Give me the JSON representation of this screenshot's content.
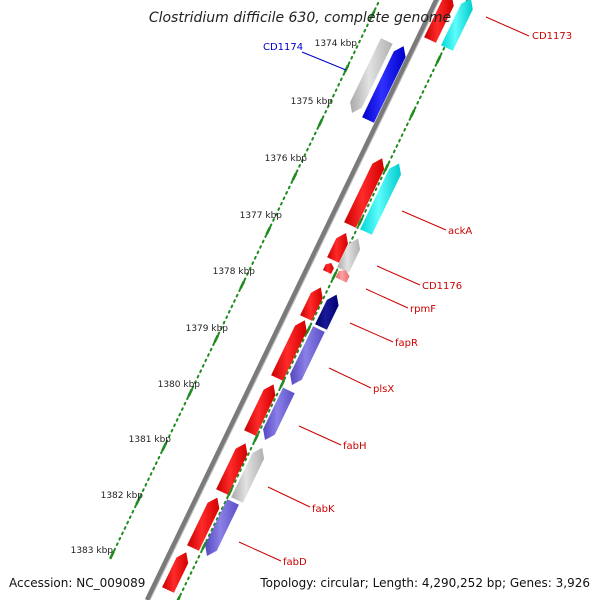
{
  "title": "Clostridium difficile 630, complete genome",
  "accession_text": "Accession: NC_009089",
  "topology_text": "Topology: circular; Length: 4,290,252 bp; Genes: 3,926",
  "colors": {
    "backbone": "#7a7a7a",
    "tick": "#1e8c1e",
    "label_red": "#cc0000",
    "label_blue": "#0000cc",
    "red": "#ff0000",
    "cyan": "#00ffff",
    "gray": "#c0c0c0",
    "blue": "#0000ff",
    "navy": "#000080",
    "slate": "#6b5fd3",
    "pink": "#f08080"
  },
  "kbp_labels": [
    "1374 kbp",
    "1375 kbp",
    "1376 kbp",
    "1377 kbp",
    "1378 kbp",
    "1379 kbp",
    "1380 kbp",
    "1381 kbp",
    "1382 kbp",
    "1383 kbp"
  ],
  "gene_labels": [
    {
      "id": "CD1173",
      "text": "CD1173",
      "color": "red"
    },
    {
      "id": "CD1174",
      "text": "CD1174",
      "color": "blue"
    },
    {
      "id": "ackA",
      "text": "ackA",
      "color": "red"
    },
    {
      "id": "CD1176",
      "text": "CD1176",
      "color": "red"
    },
    {
      "id": "rpmF",
      "text": "rpmF",
      "color": "red"
    },
    {
      "id": "fapR",
      "text": "fapR",
      "color": "red"
    },
    {
      "id": "plsX",
      "text": "plsX",
      "color": "red"
    },
    {
      "id": "fabH",
      "text": "fabH",
      "color": "red"
    },
    {
      "id": "fabK",
      "text": "fabK",
      "color": "red"
    },
    {
      "id": "fabD",
      "text": "fabD",
      "color": "red"
    }
  ]
}
